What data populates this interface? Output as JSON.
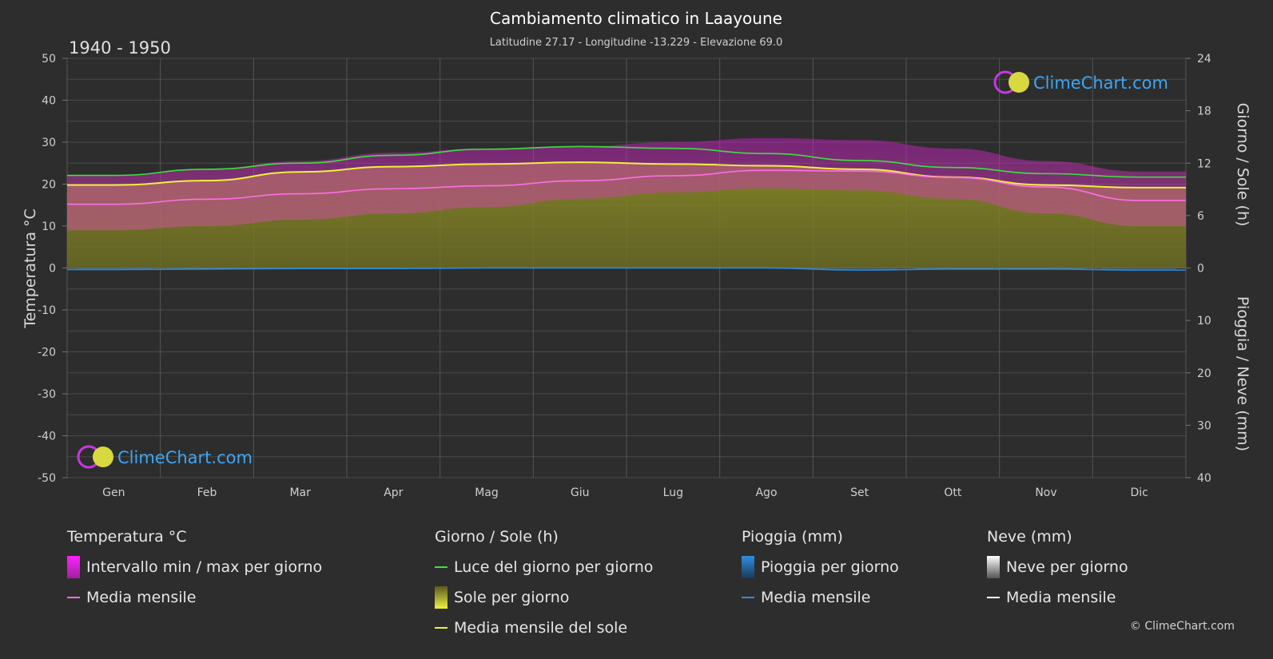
{
  "title": "Cambiamento climatico in Laayoune",
  "subtitle": "Latitudine 27.17 - Longitudine -13.229 - Elevazione 69.0",
  "period": "1940 - 1950",
  "brand": "ClimeChart.com",
  "copyright": "© ClimeChart.com",
  "colors": {
    "background": "#2d2d2d",
    "temp_range": "#d020c8",
    "temp_mean": "#ff6ee6",
    "daylight": "#3ee03e",
    "sunshine": "#a8a82a",
    "sunshine_mean": "#f0f040",
    "rain": "#2f8fe0",
    "rain_mean": "#2f8fe0",
    "snow": "#ffffff"
  },
  "chart_data": {
    "type": "area",
    "categories": [
      "Gen",
      "Feb",
      "Mar",
      "Apr",
      "Mag",
      "Giu",
      "Lug",
      "Ago",
      "Set",
      "Ott",
      "Nov",
      "Dic"
    ],
    "axes": {
      "left": {
        "label": "Temperatura °C",
        "min": -50,
        "max": 50,
        "ticks": [
          "50",
          "40",
          "30",
          "20",
          "10",
          "0",
          "-10",
          "-20",
          "-30",
          "-40",
          "-50"
        ]
      },
      "right_top": {
        "label": "Giorno / Sole (h)",
        "min": 0,
        "max": 24,
        "ticks": [
          "24",
          "18",
          "12",
          "6",
          "0"
        ]
      },
      "right_bottom": {
        "label": "Pioggia / Neve (mm)",
        "min": 0,
        "max": 40,
        "ticks": [
          "10",
          "20",
          "30",
          "40"
        ]
      }
    },
    "grid": true,
    "series": [
      {
        "name": "Luce del giorno per giorno",
        "unit": "h",
        "values": [
          10.6,
          11.3,
          12.0,
          12.9,
          13.6,
          13.9,
          13.7,
          13.1,
          12.3,
          11.5,
          10.8,
          10.4
        ]
      },
      {
        "name": "Media mensile del sole",
        "unit": "h",
        "values": [
          9.5,
          10.0,
          11.0,
          11.6,
          11.9,
          12.1,
          11.9,
          11.7,
          11.3,
          10.4,
          9.5,
          9.2
        ]
      },
      {
        "name": "Media mensile",
        "unit": "°C",
        "values": [
          15.2,
          16.4,
          17.7,
          18.9,
          19.6,
          20.8,
          22.0,
          23.3,
          23.1,
          21.6,
          19.3,
          16.1
        ]
      },
      {
        "name": "Intervallo min / max per giorno",
        "unit": "°C",
        "min": [
          9.0,
          10.0,
          11.5,
          13.0,
          14.5,
          16.5,
          18.0,
          19.0,
          18.5,
          16.5,
          13.0,
          10.0
        ],
        "max": [
          22.0,
          23.5,
          25.5,
          27.5,
          28.5,
          29.0,
          30.0,
          31.0,
          30.5,
          28.5,
          25.5,
          23.0
        ]
      },
      {
        "name": "Pioggia media mensile",
        "unit": "mm",
        "values": [
          0.3,
          0.2,
          0.1,
          0.1,
          0.0,
          0.0,
          0.0,
          0.0,
          0.4,
          0.2,
          0.2,
          0.4
        ]
      },
      {
        "name": "Neve media mensile",
        "unit": "mm",
        "values": [
          0,
          0,
          0,
          0,
          0,
          0,
          0,
          0,
          0,
          0,
          0,
          0
        ]
      }
    ]
  },
  "legend": {
    "temperature": {
      "title": "Temperatura °C",
      "items": [
        "Intervallo min / max per giorno",
        "Media mensile"
      ]
    },
    "sun": {
      "title": "Giorno / Sole (h)",
      "items": [
        "Luce del giorno per giorno",
        "Sole per giorno",
        "Media mensile del sole"
      ]
    },
    "rain": {
      "title": "Pioggia (mm)",
      "items": [
        "Pioggia per giorno",
        "Media mensile"
      ]
    },
    "snow": {
      "title": "Neve (mm)",
      "items": [
        "Neve per giorno",
        "Media mensile"
      ]
    }
  }
}
